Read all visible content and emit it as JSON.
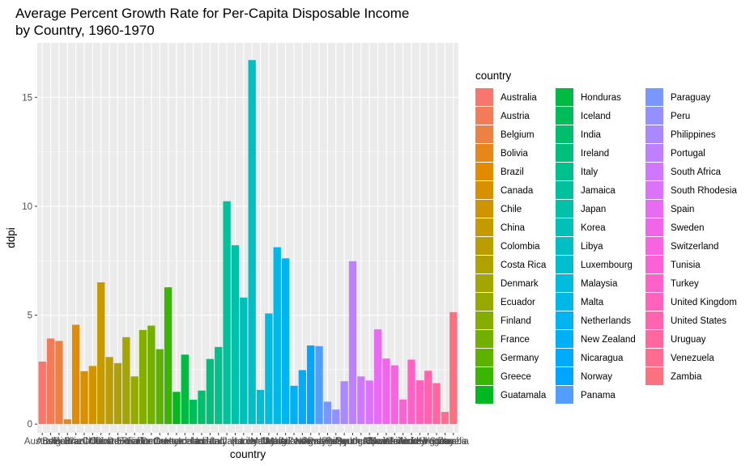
{
  "chart_data": {
    "type": "bar",
    "title": [
      "Average Percent Growth Rate for Per-Capita Disposable Income",
      "by Country, 1960-1970"
    ],
    "xlabel": "country",
    "ylabel": "ddpi",
    "ylim": [
      -0.4,
      17.5
    ],
    "yticks": [
      0,
      5,
      10,
      15
    ],
    "grid": true,
    "legend_title": "country",
    "legend_position": "right",
    "categories": [
      "Australia",
      "Austria",
      "Belgium",
      "Bolivia",
      "Brazil",
      "Canada",
      "Chile",
      "China",
      "Colombia",
      "Costa Rica",
      "Denmark",
      "Ecuador",
      "Finland",
      "France",
      "Germany",
      "Greece",
      "Guatamala",
      "Honduras",
      "Iceland",
      "India",
      "Ireland",
      "Italy",
      "Jamaica",
      "Japan",
      "Korea",
      "Libya",
      "Luxembourg",
      "Malaysia",
      "Malta",
      "Netherlands",
      "New Zealand",
      "Nicaragua",
      "Norway",
      "Panama",
      "Paraguay",
      "Peru",
      "Philippines",
      "Portugal",
      "South Africa",
      "South Rhodesia",
      "Spain",
      "Sweden",
      "Switzerland",
      "Tunisia",
      "Turkey",
      "United Kingdom",
      "United States",
      "Uruguay",
      "Venezuela",
      "Zambia"
    ],
    "values": [
      2.87,
      3.93,
      3.82,
      0.22,
      4.56,
      2.43,
      2.67,
      6.51,
      3.08,
      2.8,
      3.99,
      2.19,
      4.32,
      4.52,
      3.44,
      6.28,
      1.48,
      3.19,
      1.12,
      1.54,
      2.99,
      3.54,
      10.23,
      8.21,
      5.81,
      16.71,
      1.57,
      5.08,
      8.12,
      7.61,
      1.76,
      2.48,
      3.61,
      3.58,
      1.03,
      0.67,
      1.97,
      7.48,
      2.19,
      2.0,
      4.35,
      3.01,
      2.7,
      1.13,
      2.96,
      2.01,
      2.45,
      1.88,
      0.56,
      5.14
    ],
    "tick_labels": [
      "Australia",
      "Austria",
      "Belgium",
      "Bolivia",
      "Brazil",
      "Canada",
      "Chile",
      "China",
      "Colombia",
      "Costa Rica",
      "Denmark",
      "Ecuador",
      "Finland",
      "France",
      "Germany",
      "Greece",
      "Guatamala",
      "Honduras",
      "Iceland",
      "India",
      "Ireland",
      "Italy",
      "Jamaica",
      "Japan",
      "Korea",
      "Libya",
      "Luxembourg",
      "Malaysia",
      "Malta",
      "Netherlands",
      "New Zealand",
      "Nicaragua",
      "Norway",
      "Panama",
      "Paraguay",
      "Peru",
      "Philippines",
      "Portugal",
      "South Africa",
      "South Rhodesia",
      "Spain",
      "Sweden",
      "Switzerland",
      "Tunisia",
      "Turkey",
      "United Kingdom",
      "United States",
      "Uruguay",
      "Venezuela",
      "Zambia"
    ]
  },
  "colors": {
    "panel_background": "#EBEBEB",
    "gridline": "#FFFFFF",
    "series_palette": "ggplot2 default hue scale (50 levels, hue 15 to 375)"
  }
}
